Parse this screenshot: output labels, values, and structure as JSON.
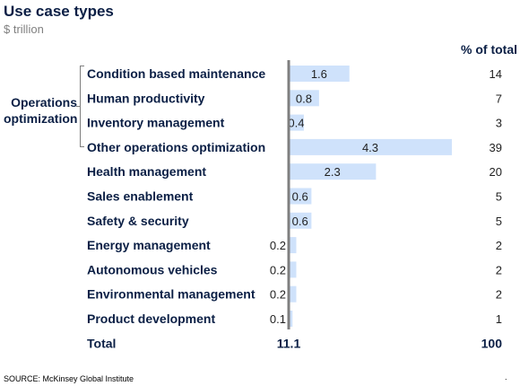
{
  "title": "Use case types",
  "subtitle": "$ trillion",
  "pct_header": "% of total",
  "group_label": "Operations optimization",
  "source": "SOURCE: McKinsey Global Institute",
  "corner_mark": ".",
  "colors": {
    "bar": "#cfe2fb",
    "axis": "#7f7f7f",
    "text": "#0b1f45",
    "value_text": "#1f1f1f"
  },
  "chart_data": {
    "type": "bar",
    "orientation": "horizontal",
    "categories": [
      "Condition based maintenance",
      "Human productivity",
      "Inventory management",
      "Other operations optimization",
      "Health management",
      "Sales enablement",
      "Safety & security",
      "Energy management",
      "Autonomous vehicles",
      "Environmental management",
      "Product development"
    ],
    "values": [
      1.6,
      0.8,
      0.4,
      4.3,
      2.3,
      0.6,
      0.6,
      0.2,
      0.2,
      0.2,
      0.1
    ],
    "value_labels": [
      "1.6",
      "0.8",
      "0.4",
      "4.3",
      "2.3",
      "0.6",
      "0.6",
      "0.2",
      "0.2",
      "0.2",
      "0.1"
    ],
    "percent_of_total": [
      "14",
      "7",
      "3",
      "39",
      "20",
      "5",
      "5",
      "2",
      "2",
      "2",
      "1"
    ],
    "group": {
      "name": "Operations optimization",
      "members": [
        0,
        1,
        2,
        3
      ]
    },
    "total": {
      "label": "Total",
      "value": "11.1",
      "percent": "100"
    },
    "xlim": [
      0,
      4.3
    ],
    "grid": false
  }
}
